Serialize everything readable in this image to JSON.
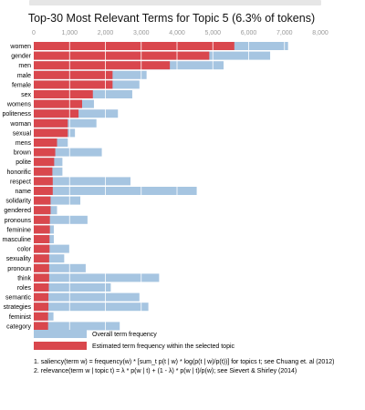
{
  "colors": {
    "overall": "#a6c5e1",
    "estimated": "#d9474d",
    "gridline": "#ffffff"
  },
  "chart_data": {
    "type": "bar",
    "orientation": "horizontal",
    "title": "Top-30 Most Relevant Terms for Topic 5 (6.3% of tokens)",
    "xlim": [
      0,
      8000
    ],
    "x_ticks": [
      "0",
      "1,000",
      "2,000",
      "3,000",
      "4,000",
      "5,000",
      "6,000",
      "7,000",
      "8,000"
    ],
    "x_tick_values": [
      0,
      1000,
      2000,
      3000,
      4000,
      5000,
      6000,
      7000,
      8000
    ],
    "categories": [
      "women",
      "gender",
      "men",
      "male",
      "female",
      "sex",
      "womens",
      "politeness",
      "woman",
      "sexual",
      "mens",
      "brown",
      "polite",
      "honorific",
      "respect",
      "name",
      "solidarity",
      "gendered",
      "pronouns",
      "feminine",
      "masculine",
      "color",
      "sexuality",
      "pronoun",
      "think",
      "roles",
      "semantic",
      "strategies",
      "feminist",
      "category"
    ],
    "series": [
      {
        "name": "Overall term frequency",
        "values": [
          7100,
          6600,
          5300,
          3150,
          2950,
          2750,
          1680,
          2350,
          1750,
          1150,
          950,
          1900,
          800,
          800,
          2700,
          4550,
          1300,
          650,
          1500,
          560,
          560,
          1000,
          850,
          1450,
          3500,
          2150,
          2950,
          3200,
          550,
          2400
        ]
      },
      {
        "name": "Estimated term frequency within the selected topic",
        "values": [
          5600,
          4900,
          3800,
          2200,
          2200,
          1650,
          1350,
          1250,
          950,
          950,
          650,
          600,
          570,
          520,
          530,
          530,
          470,
          470,
          450,
          450,
          440,
          440,
          430,
          430,
          430,
          420,
          410,
          410,
          400,
          400
        ]
      }
    ],
    "legend_position": "bottom-left",
    "footnotes": [
      "1. saliency(term w) = frequency(w) * [sum_t p(t | w) * log(p(t | w)/p(t))] for topics t; see Chuang et. al (2012)",
      "2. relevance(term w | topic t) = λ * p(w | t) + (1 - λ) * p(w | t)/p(w); see Sievert & Shirley (2014)"
    ]
  }
}
